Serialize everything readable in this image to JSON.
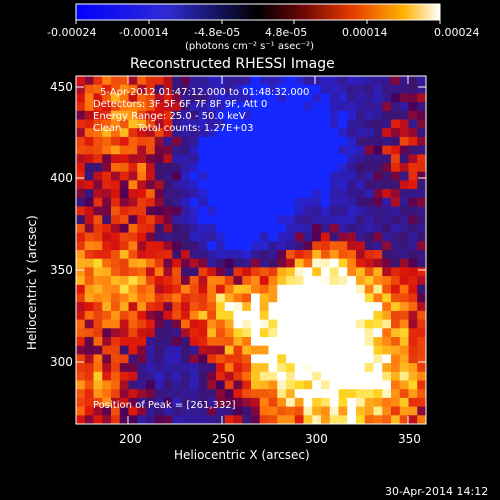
{
  "colorbar": {
    "tick_labels": [
      "-0.00024",
      "-0.00014",
      "-4.8e-05",
      "4.8e-05",
      "0.00014",
      "0.00024"
    ],
    "units_label": "(photons cm⁻² s⁻¹ asec⁻²)",
    "range": [
      -0.00024,
      0.00024
    ]
  },
  "image": {
    "title": "Reconstructed RHESSI Image",
    "annotation_lines": [
      "5-Apr-2012 01:47:12.000 to 01:48:32.000",
      "Detectors: 3F 5F 6F 7F 8F 9F, Att 0",
      "Energy Range: 25.0 - 50.0 keV",
      "Clean     Total counts: 1.27E+03"
    ],
    "peak_label": "Position of Peak = [261,332]",
    "x_axis": {
      "label": "Heliocentric X (arcsec)",
      "tick_labels": [
        "200",
        "250",
        "300",
        "350"
      ],
      "range": [
        170,
        362
      ]
    },
    "y_axis": {
      "label": "Heliocentric Y (arcsec)",
      "tick_labels": [
        "300",
        "350",
        "400",
        "450"
      ],
      "range": [
        262,
        462
      ]
    }
  },
  "footer": {
    "date_stamp": "30-Apr-2014 14:12"
  },
  "colors": {
    "background": "#000000",
    "text": "#ffffff",
    "map_low": "#0000ff",
    "map_zero": "#000000",
    "map_high": "#ffffff"
  }
}
